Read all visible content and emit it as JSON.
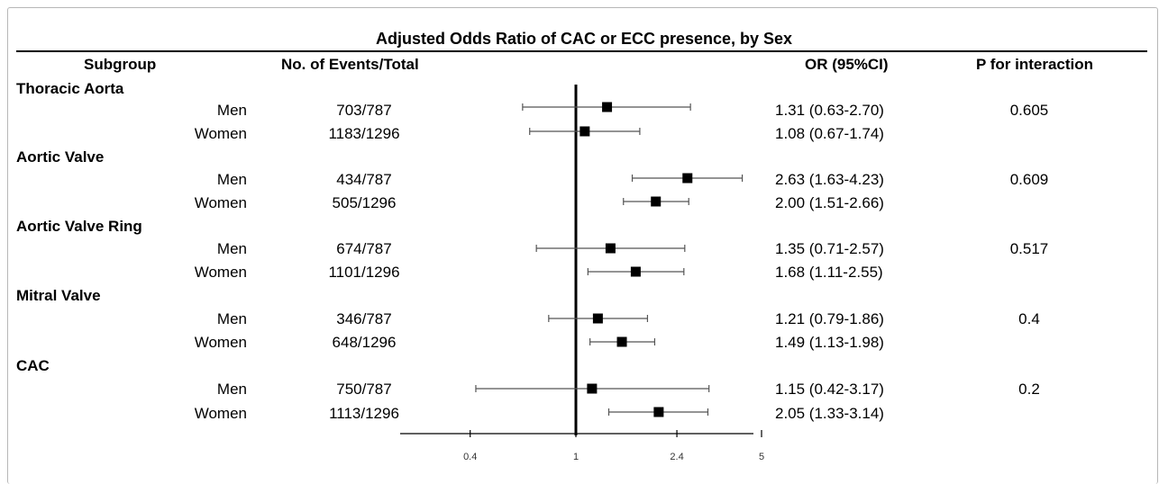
{
  "title": "Adjusted Odds Ratio of CAC or ECC presence, by Sex",
  "headers": {
    "subgroup": "Subgroup",
    "events": "No. of Events/Total",
    "or": "OR (95%CI)",
    "p": "P for interaction"
  },
  "groups": [
    {
      "name": "Thoracic Aorta",
      "p": "0.605",
      "rows": [
        {
          "sex": "Men",
          "events": "703/787",
          "or_text": "1.31 (0.63-2.70)"
        },
        {
          "sex": "Women",
          "events": "1183/1296",
          "or_text": "1.08 (0.67-1.74)"
        }
      ]
    },
    {
      "name": "Aortic Valve",
      "p": "0.609",
      "rows": [
        {
          "sex": "Men",
          "events": "434/787",
          "or_text": "2.63 (1.63-4.23)"
        },
        {
          "sex": "Women",
          "events": "505/1296",
          "or_text": "2.00 (1.51-2.66)"
        }
      ]
    },
    {
      "name": "Aortic Valve Ring",
      "p": "0.517",
      "rows": [
        {
          "sex": "Men",
          "events": "674/787",
          "or_text": "1.35 (0.71-2.57)"
        },
        {
          "sex": "Women",
          "events": "1101/1296",
          "or_text": "1.68 (1.11-2.55)"
        }
      ]
    },
    {
      "name": "Mitral Valve",
      "p": "0.4",
      "rows": [
        {
          "sex": "Men",
          "events": "346/787",
          "or_text": "1.21 (0.79-1.86)"
        },
        {
          "sex": "Women",
          "events": "648/1296",
          "or_text": "1.49 (1.13-1.98)"
        }
      ]
    },
    {
      "name": "CAC",
      "p": "0.2",
      "rows": [
        {
          "sex": "Men",
          "events": "750/787",
          "or_text": "1.15 (0.42-3.17)"
        },
        {
          "sex": "Women",
          "events": "1113/1296",
          "or_text": "2.05 (1.33-3.14)"
        }
      ]
    }
  ],
  "chart_data": {
    "type": "scatter",
    "subtype": "forest-plot",
    "title": "Adjusted Odds Ratio of CAC or ECC presence, by Sex",
    "x_scale": "log",
    "xlim": [
      0.25,
      6.5
    ],
    "x_ticks": [
      "0.4",
      "1",
      "2.4",
      "5"
    ],
    "reference_line": 1,
    "points": [
      {
        "group": "Thoracic Aorta",
        "sex": "Men",
        "or": 1.31,
        "lo": 0.63,
        "hi": 2.7
      },
      {
        "group": "Thoracic Aorta",
        "sex": "Women",
        "or": 1.08,
        "lo": 0.67,
        "hi": 1.74
      },
      {
        "group": "Aortic Valve",
        "sex": "Men",
        "or": 2.63,
        "lo": 1.63,
        "hi": 4.23
      },
      {
        "group": "Aortic Valve",
        "sex": "Women",
        "or": 2.0,
        "lo": 1.51,
        "hi": 2.66
      },
      {
        "group": "Aortic Valve Ring",
        "sex": "Men",
        "or": 1.35,
        "lo": 0.71,
        "hi": 2.57
      },
      {
        "group": "Aortic Valve Ring",
        "sex": "Women",
        "or": 1.68,
        "lo": 1.11,
        "hi": 2.55
      },
      {
        "group": "Mitral Valve",
        "sex": "Men",
        "or": 1.21,
        "lo": 0.79,
        "hi": 1.86
      },
      {
        "group": "Mitral Valve",
        "sex": "Women",
        "or": 1.49,
        "lo": 1.13,
        "hi": 1.98
      },
      {
        "group": "CAC",
        "sex": "Men",
        "or": 1.15,
        "lo": 0.42,
        "hi": 3.17
      },
      {
        "group": "CAC",
        "sex": "Women",
        "or": 2.05,
        "lo": 1.33,
        "hi": 3.14
      }
    ]
  }
}
